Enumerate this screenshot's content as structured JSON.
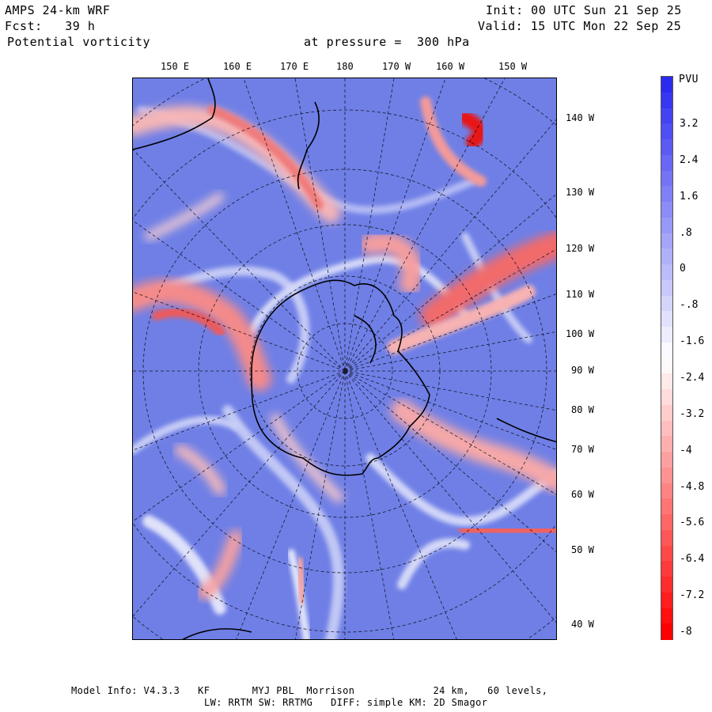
{
  "header": {
    "model_line": "AMPS 24-km WRF",
    "forecast_line": "Fcst:   39 h",
    "variable_line": "Potential vorticity",
    "pressure_line": "at pressure =  300 hPa",
    "init_line": "Init: 00 UTC Sun 21 Sep 25",
    "valid_line": "Valid: 15 UTC Mon 22 Sep 25"
  },
  "top_longitude_labels": [
    "150 E",
    "160 E",
    "170 E",
    "180",
    "170 W",
    "160 W",
    "150 W"
  ],
  "right_longitude_labels": [
    "140 W",
    "130 W",
    "120 W",
    "110 W",
    "100 W",
    "90 W",
    "80 W",
    "70 W",
    "60 W",
    "50 W",
    "40 W"
  ],
  "colorbar": {
    "unit": "PVU",
    "tick_labels": [
      "3.2",
      "2.4",
      "1.6",
      ".8",
      "0",
      "-.8",
      "-1.6",
      "-2.4",
      "-3.2",
      "-4",
      "-4.8",
      "-5.6",
      "-6.4",
      "-7.2",
      "-8"
    ],
    "color_top": "#2b2bf0",
    "color_mid": "#ffffff",
    "color_bottom": "#ff0000"
  },
  "field_colors": {
    "positive_background": "#6f7fe6",
    "light_blue": "#a9b2f2",
    "light_red": "#f4a6a6",
    "strong_red": "#f05a5a",
    "max_red": "#e81010",
    "coastline": "#000000",
    "graticule": "#000000"
  },
  "footer": {
    "line1": "Model Info: V4.3.3   KF       MYJ PBL  Morrison             24 km,   60 levels,",
    "line2": "LW: RRTM SW: RRTMG   DIFF: simple KM: 2D Smagor"
  }
}
